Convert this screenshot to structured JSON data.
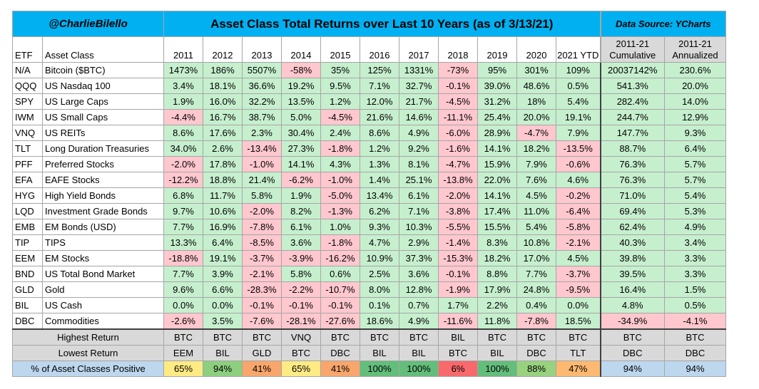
{
  "title": {
    "handle": "@CharlieBilello",
    "main": "Asset Class Total Returns over Last 10 Years (as of 3/13/21)",
    "source": "Data Source: YCharts"
  },
  "headers": {
    "etf": "ETF",
    "asset_class": "Asset Class",
    "years": [
      "2011",
      "2012",
      "2013",
      "2014",
      "2015",
      "2016",
      "2017",
      "2018",
      "2019",
      "2020",
      "2021 YTD"
    ],
    "cumulative": [
      "2011-21",
      "Cumulative"
    ],
    "annualized": [
      "2011-21",
      "Annualized"
    ]
  },
  "rows": [
    {
      "etf": "N/A",
      "name": "Bitcoin ($BTC)",
      "values": [
        "1473%",
        "186%",
        "5507%",
        "-58%",
        "35%",
        "125%",
        "1331%",
        "-73%",
        "95%",
        "301%",
        "109%"
      ],
      "cum": "20037142%",
      "ann": "230.6%"
    },
    {
      "etf": "QQQ",
      "name": "US Nasdaq 100",
      "values": [
        "3.4%",
        "18.1%",
        "36.6%",
        "19.2%",
        "9.5%",
        "7.1%",
        "32.7%",
        "-0.1%",
        "39.0%",
        "48.6%",
        "0.5%"
      ],
      "cum": "541.3%",
      "ann": "20.0%"
    },
    {
      "etf": "SPY",
      "name": "US Large Caps",
      "values": [
        "1.9%",
        "16.0%",
        "32.2%",
        "13.5%",
        "1.2%",
        "12.0%",
        "21.7%",
        "-4.5%",
        "31.2%",
        "18%",
        "5.4%"
      ],
      "cum": "282.4%",
      "ann": "14.0%"
    },
    {
      "etf": "IWM",
      "name": "US Small Caps",
      "values": [
        "-4.4%",
        "16.7%",
        "38.7%",
        "5.0%",
        "-4.5%",
        "21.6%",
        "14.6%",
        "-11.1%",
        "25.4%",
        "20.0%",
        "19.1%"
      ],
      "cum": "244.7%",
      "ann": "12.9%"
    },
    {
      "etf": "VNQ",
      "name": "US REITs",
      "values": [
        "8.6%",
        "17.6%",
        "2.3%",
        "30.4%",
        "2.4%",
        "8.6%",
        "4.9%",
        "-6.0%",
        "28.9%",
        "-4.7%",
        "7.9%"
      ],
      "cum": "147.7%",
      "ann": "9.3%"
    },
    {
      "etf": "TLT",
      "name": "Long Duration Treasuries",
      "values": [
        "34.0%",
        "2.6%",
        "-13.4%",
        "27.3%",
        "-1.8%",
        "1.2%",
        "9.2%",
        "-1.6%",
        "14.1%",
        "18.2%",
        "-13.5%"
      ],
      "cum": "88.7%",
      "ann": "6.4%"
    },
    {
      "etf": "PFF",
      "name": "Preferred Stocks",
      "values": [
        "-2.0%",
        "17.8%",
        "-1.0%",
        "14.1%",
        "4.3%",
        "1.3%",
        "8.1%",
        "-4.7%",
        "15.9%",
        "7.9%",
        "-0.6%"
      ],
      "cum": "76.3%",
      "ann": "5.7%"
    },
    {
      "etf": "EFA",
      "name": "EAFE Stocks",
      "values": [
        "-12.2%",
        "18.8%",
        "21.4%",
        "-6.2%",
        "-1.0%",
        "1.4%",
        "25.1%",
        "-13.8%",
        "22.0%",
        "7.6%",
        "4.6%"
      ],
      "cum": "76.3%",
      "ann": "5.7%"
    },
    {
      "etf": "HYG",
      "name": "High Yield Bonds",
      "values": [
        "6.8%",
        "11.7%",
        "5.8%",
        "1.9%",
        "-5.0%",
        "13.4%",
        "6.1%",
        "-2.0%",
        "14.1%",
        "4.5%",
        "-0.2%"
      ],
      "cum": "71.0%",
      "ann": "5.4%"
    },
    {
      "etf": "LQD",
      "name": "Investment Grade Bonds",
      "values": [
        "9.7%",
        "10.6%",
        "-2.0%",
        "8.2%",
        "-1.3%",
        "6.2%",
        "7.1%",
        "-3.8%",
        "17.4%",
        "11.0%",
        "-6.4%"
      ],
      "cum": "69.4%",
      "ann": "5.3%"
    },
    {
      "etf": "EMB",
      "name": "EM Bonds (USD)",
      "values": [
        "7.7%",
        "16.9%",
        "-7.8%",
        "6.1%",
        "1.0%",
        "9.3%",
        "10.3%",
        "-5.5%",
        "15.5%",
        "5.4%",
        "-5.8%"
      ],
      "cum": "62.4%",
      "ann": "4.9%"
    },
    {
      "etf": "TIP",
      "name": "TIPS",
      "values": [
        "13.3%",
        "6.4%",
        "-8.5%",
        "3.6%",
        "-1.8%",
        "4.7%",
        "2.9%",
        "-1.4%",
        "8.3%",
        "10.8%",
        "-2.1%"
      ],
      "cum": "40.3%",
      "ann": "3.4%"
    },
    {
      "etf": "EEM",
      "name": "EM Stocks",
      "values": [
        "-18.8%",
        "19.1%",
        "-3.7%",
        "-3.9%",
        "-16.2%",
        "10.9%",
        "37.3%",
        "-15.3%",
        "18.2%",
        "17.0%",
        "4.5%"
      ],
      "cum": "39.8%",
      "ann": "3.3%"
    },
    {
      "etf": "BND",
      "name": "US Total Bond Market",
      "values": [
        "7.7%",
        "3.9%",
        "-2.1%",
        "5.8%",
        "0.6%",
        "2.5%",
        "3.6%",
        "-0.1%",
        "8.8%",
        "7.7%",
        "-3.7%"
      ],
      "cum": "39.5%",
      "ann": "3.3%"
    },
    {
      "etf": "GLD",
      "name": "Gold",
      "values": [
        "9.6%",
        "6.6%",
        "-28.3%",
        "-2.2%",
        "-10.7%",
        "8.0%",
        "12.8%",
        "-1.9%",
        "17.9%",
        "24.8%",
        "-9.5%"
      ],
      "cum": "16.4%",
      "ann": "1.5%"
    },
    {
      "etf": "BIL",
      "name": "US Cash",
      "values": [
        "0.0%",
        "0.0%",
        "-0.1%",
        "-0.1%",
        "-0.1%",
        "0.1%",
        "0.7%",
        "1.7%",
        "2.2%",
        "0.4%",
        "0.0%"
      ],
      "cum": "4.8%",
      "ann": "0.5%"
    },
    {
      "etf": "DBC",
      "name": "Commodities",
      "values": [
        "-2.6%",
        "3.5%",
        "-7.6%",
        "-28.1%",
        "-27.6%",
        "18.6%",
        "4.9%",
        "-11.6%",
        "11.8%",
        "-7.8%",
        "18.5%"
      ],
      "cum": "-34.9%",
      "ann": "-4.1%"
    }
  ],
  "summary": {
    "highest": {
      "label": "Highest Return",
      "values": [
        "BTC",
        "BTC",
        "BTC",
        "VNQ",
        "BTC",
        "BTC",
        "BTC",
        "BIL",
        "BTC",
        "BTC",
        "BTC"
      ],
      "cum": "BTC",
      "ann": "BTC"
    },
    "lowest": {
      "label": "Lowest Return",
      "values": [
        "EEM",
        "BIL",
        "GLD",
        "BTC",
        "DBC",
        "BIL",
        "BIL",
        "BTC",
        "BIL",
        "DBC",
        "TLT"
      ],
      "cum": "DBC",
      "ann": "DBC"
    },
    "positive": {
      "label": "% of Asset Classes Positive",
      "values": [
        "65%",
        "94%",
        "41%",
        "65%",
        "41%",
        "100%",
        "100%",
        "6%",
        "100%",
        "88%",
        "47%"
      ],
      "cum": "94%",
      "ann": "94%"
    }
  },
  "colors": {
    "title_bg": "#00b0f0",
    "positive_bg": "#c6efce",
    "negative_bg": "#ffc7ce",
    "summary_bg": "#d9d9d9",
    "blue_bg": "#bdd7ee",
    "pct_colors": [
      "#ffeb84",
      "#8ccf7e",
      "#f8a66b",
      "#ffeb84",
      "#f8a66b",
      "#63be7b",
      "#63be7b",
      "#f8696b",
      "#63be7b",
      "#98d27f",
      "#fdb971"
    ]
  }
}
